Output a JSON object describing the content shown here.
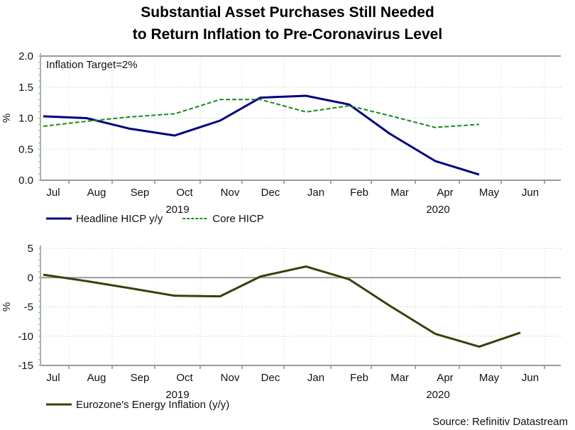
{
  "title": {
    "line1": "Substantial Asset Purchases Still Needed",
    "line2": "to Return Inflation to Pre-Coronavirus Level"
  },
  "source": "Source: Refinitiv Datastream",
  "chart_data": [
    {
      "type": "line",
      "title": "",
      "annotation": "Inflation Target=2%",
      "ylabel": "%",
      "xlabel": "",
      "categories": [
        "Jul",
        "Aug",
        "Sep",
        "Oct",
        "Nov",
        "Dec",
        "Jan",
        "Feb",
        "Mar",
        "Apr",
        "May",
        "Jun"
      ],
      "year_labels": [
        {
          "label": "2019",
          "under": "Oct"
        },
        {
          "label": "2020",
          "under": "Apr"
        }
      ],
      "ylim": [
        0,
        2.0
      ],
      "yticks": [
        "0.0",
        "0.5",
        "1.0",
        "1.5",
        "2.0"
      ],
      "ytick_values": [
        0,
        0.5,
        1.0,
        1.5,
        2.0
      ],
      "grid": true,
      "reference_line": 2.0,
      "legend_position": "bottom-left",
      "series": [
        {
          "name": "Headline HICP y/y",
          "color": "#000080",
          "style": "solid",
          "values": [
            1.03,
            1.0,
            0.83,
            0.72,
            0.96,
            1.33,
            1.36,
            1.22,
            0.75,
            0.31,
            0.09,
            null
          ]
        },
        {
          "name": "Core HICP",
          "color": "#1a8a1a",
          "style": "dashed",
          "values": [
            0.87,
            0.95,
            1.02,
            1.07,
            1.3,
            1.3,
            1.1,
            1.2,
            1.04,
            0.85,
            0.9,
            null
          ]
        }
      ]
    },
    {
      "type": "line",
      "title": "",
      "ylabel": "%",
      "xlabel": "",
      "categories": [
        "Jul",
        "Aug",
        "Sep",
        "Oct",
        "Nov",
        "Dec",
        "Jan",
        "Feb",
        "Mar",
        "Apr",
        "May",
        "Jun"
      ],
      "year_labels": [
        {
          "label": "2019",
          "under": "Oct"
        },
        {
          "label": "2020",
          "under": "Apr"
        }
      ],
      "ylim": [
        -15,
        5
      ],
      "yticks": [
        "-15",
        "-10",
        "-5",
        "0",
        "5"
      ],
      "ytick_values": [
        -15,
        -10,
        -5,
        0,
        5
      ],
      "grid": true,
      "reference_line": 0,
      "legend_position": "bottom-left",
      "series": [
        {
          "name": "Eurozone's Energy Inflation (y/y)",
          "color": "#3d3d0a",
          "style": "solid",
          "values": [
            0.5,
            -0.6,
            -1.8,
            -3.1,
            -3.2,
            0.2,
            1.9,
            -0.3,
            -4.8,
            -9.6,
            -11.8,
            -9.4
          ]
        }
      ]
    }
  ]
}
